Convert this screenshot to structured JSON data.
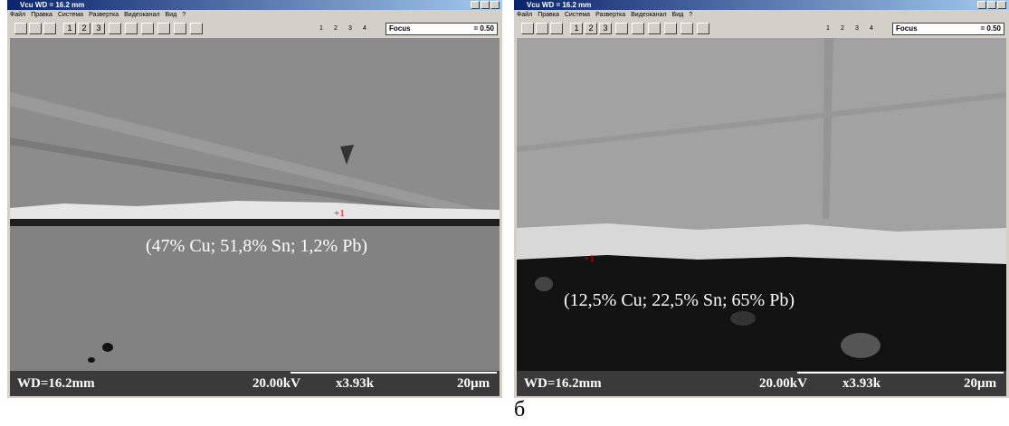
{
  "windows": [
    {
      "title": "Vcu    WD = 16.2 mm",
      "menu": [
        "Файл",
        "Правка",
        "Система",
        "Развертка",
        "Видеоканал",
        "Вид",
        "?"
      ],
      "toolbar_buttons": [
        "1",
        "2",
        "3"
      ],
      "radio": [
        "1",
        "2",
        "3",
        "4"
      ],
      "focus_label": "Focus",
      "focus_value": "= 0.50",
      "marker": "+1",
      "annotation": "(47% Cu; 51,8% Sn; 1,2% Pb)",
      "status": {
        "wd": "WD=16.2mm",
        "kv": "20.00kV",
        "mag": "x3.93k",
        "scale": "20µm"
      }
    },
    {
      "title": "Vcu    WD = 16.2 mm",
      "menu": [
        "Файл",
        "Правка",
        "Система",
        "Развертка",
        "Видеоканал",
        "Вид",
        "?"
      ],
      "toolbar_buttons": [
        "1",
        "2",
        "3"
      ],
      "radio": [
        "1",
        "2",
        "3",
        "4"
      ],
      "focus_label": "Focus",
      "focus_value": "= 0.50",
      "marker": "+1",
      "annotation": "(12,5% Cu; 22,5% Sn; 65% Pb)",
      "status": {
        "wd": "WD=16.2mm",
        "kv": "20.00kV",
        "mag": "x3.93k",
        "scale": "20µm"
      }
    }
  ],
  "caption": "б"
}
